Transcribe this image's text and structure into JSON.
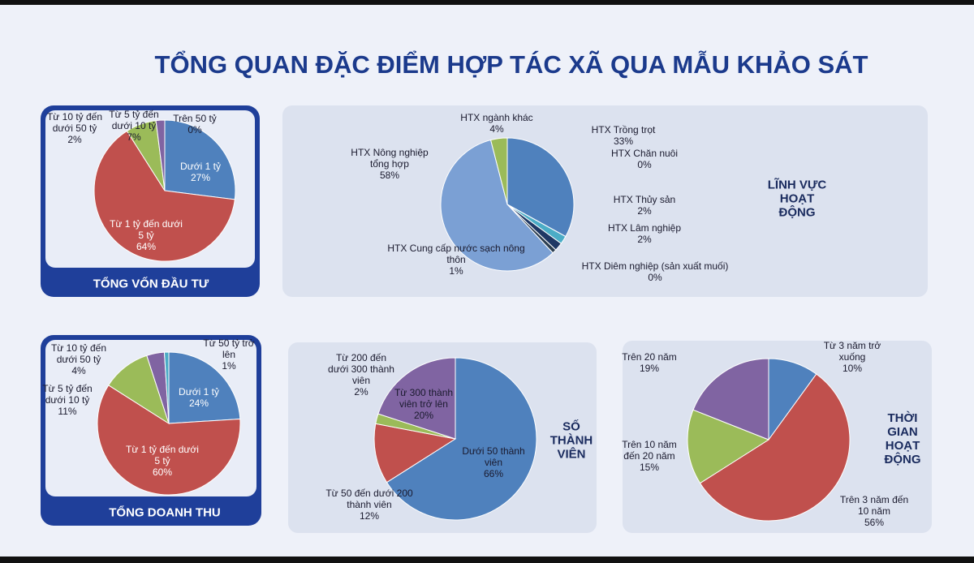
{
  "title": "TỔNG QUAN ĐẶC ĐIỂM HỢP TÁC XÃ QUA MẪU KHẢO SÁT",
  "chart_data": [
    {
      "type": "pie",
      "title": "TỔNG VỐN ĐẦU TƯ",
      "categories": [
        "Dưới 1 tỷ",
        "Từ 1 tỷ đến dưới 5 tỷ",
        "Từ 5 tỷ đến dưới 10 tỷ",
        "Từ 10 tỷ đến dưới 50 tỷ",
        "Trên 50 tỷ"
      ],
      "values": [
        27,
        64,
        7,
        2,
        0
      ],
      "value_labels": [
        "27%",
        "64%",
        "7%",
        "2%",
        "0%"
      ],
      "colors": [
        "#4f81bd",
        "#c0504d",
        "#9bbb59",
        "#8064a2",
        "#4bacc6"
      ]
    },
    {
      "type": "pie",
      "title": "LĨNH VỰC HOẠT ĐỘNG",
      "categories": [
        "HTX Trồng trọt",
        "HTX Chăn nuôi",
        "HTX Thủy sản",
        "HTX Lâm nghiệp",
        "HTX Diêm nghiệp (sản xuất muối)",
        "HTX Cung cấp nước sạch nông thôn",
        "HTX Nông nghiệp tổng hợp",
        "HTX ngành khác"
      ],
      "values": [
        33,
        0,
        2,
        2,
        0,
        1,
        58,
        4
      ],
      "value_labels": [
        "33%",
        "0%",
        "2%",
        "2%",
        "0%",
        "1%",
        "58%",
        "4%"
      ],
      "colors": [
        "#4f81bd",
        "#c0504d",
        "#4bacc6",
        "#1f3864",
        "#f79646",
        "#2c3e50",
        "#7ba0d4",
        "#9bbb59"
      ]
    },
    {
      "type": "pie",
      "title": "TỔNG DOANH THU",
      "categories": [
        "Dưới 1 tỷ",
        "Từ 1 tỷ đến dưới 5 tỷ",
        "Từ 5 tỷ đến dưới 10 tỷ",
        "Từ 10 tỷ đến dưới 50 tỷ",
        "Từ 50 tỷ trở lên"
      ],
      "values": [
        24,
        60,
        11,
        4,
        1
      ],
      "value_labels": [
        "24%",
        "60%",
        "11%",
        "4%",
        "1%"
      ],
      "colors": [
        "#4f81bd",
        "#c0504d",
        "#9bbb59",
        "#8064a2",
        "#4bacc6"
      ]
    },
    {
      "type": "pie",
      "title": "SỐ THÀNH VIÊN",
      "categories": [
        "Dưới 50 thành viên",
        "Từ 50 đến dưới 200 thành viên",
        "Từ 200 đến dưới 300 thành viên",
        "Từ 300 thành viên trở lên"
      ],
      "values": [
        66,
        12,
        2,
        20
      ],
      "value_labels": [
        "66%",
        "12%",
        "2%",
        "20%"
      ],
      "colors": [
        "#4f81bd",
        "#c0504d",
        "#9bbb59",
        "#8064a2"
      ]
    },
    {
      "type": "pie",
      "title": "THỜI GIAN HOẠT ĐỘNG",
      "categories": [
        "Từ 3 năm trở xuống",
        "Trên 3 năm đến 10 năm",
        "Trên 10 năm đến 20 năm",
        "Trên 20 năm"
      ],
      "values": [
        10,
        56,
        15,
        19
      ],
      "value_labels": [
        "10%",
        "56%",
        "15%",
        "19%"
      ],
      "colors": [
        "#4f81bd",
        "#c0504d",
        "#9bbb59",
        "#8064a2"
      ]
    }
  ]
}
